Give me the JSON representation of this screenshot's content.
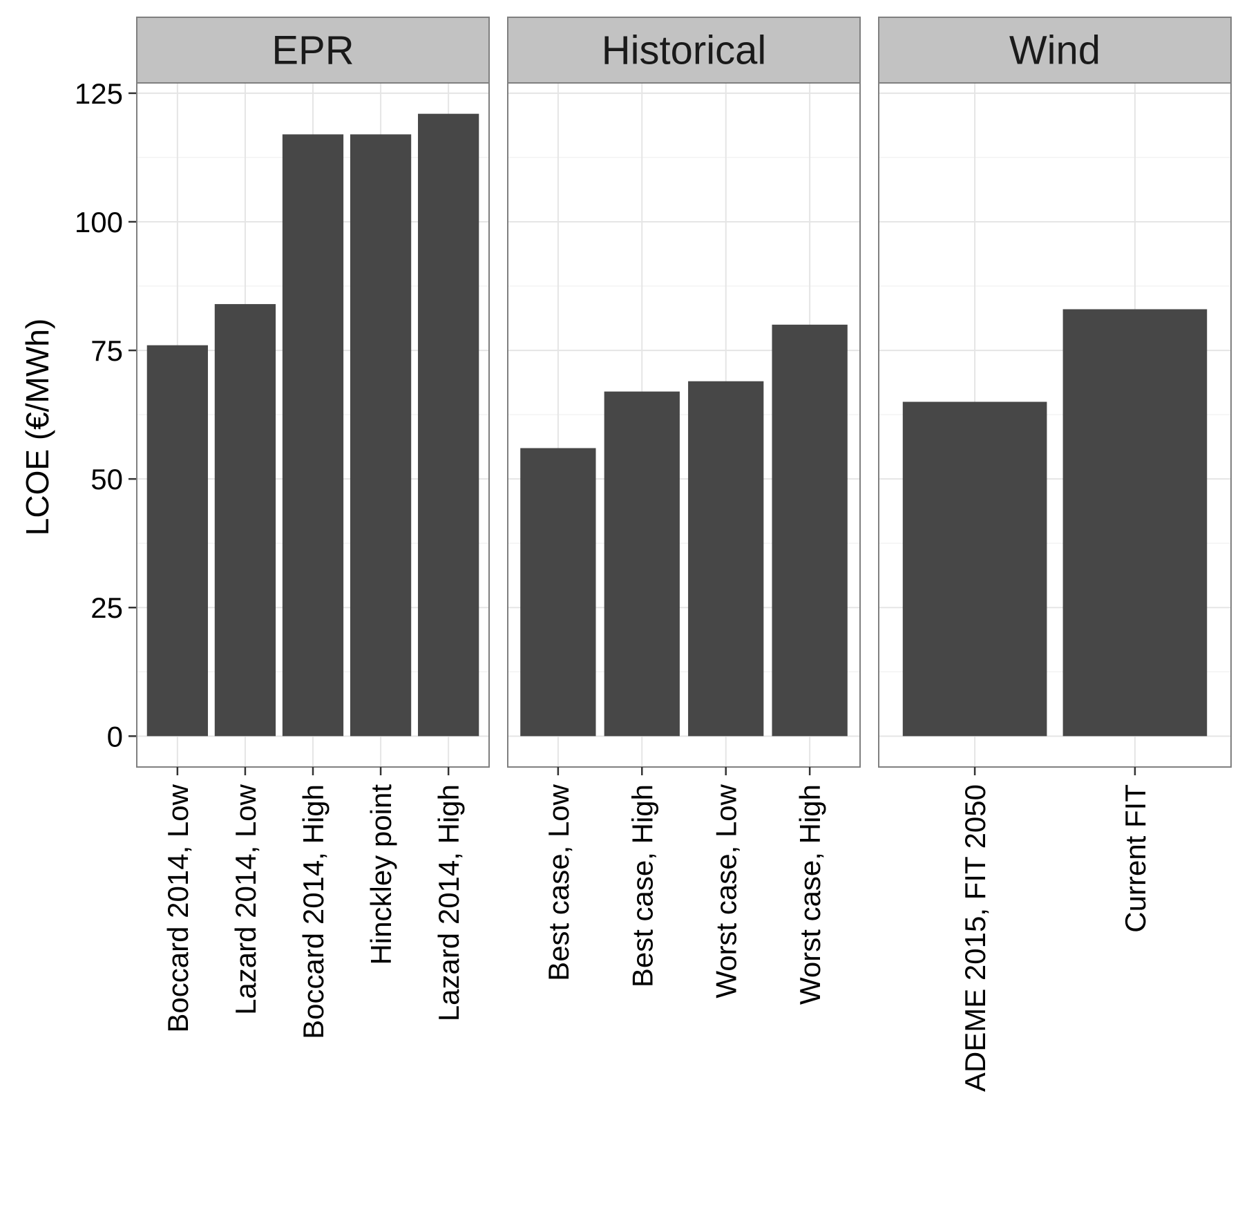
{
  "chart_data": {
    "type": "bar",
    "ylabel": "LCOE (€/MWh)",
    "xlabel": "",
    "ylim": [
      -6,
      127
    ],
    "yticks": [
      0,
      25,
      50,
      75,
      100,
      125
    ],
    "grid": true,
    "facets": [
      {
        "name": "EPR",
        "categories": [
          "Boccard 2014, Low",
          "Lazard 2014, Low",
          "Boccard 2014, High",
          "Hinckley point",
          "Lazard 2014, High"
        ],
        "values": [
          76,
          84,
          117,
          117,
          121
        ]
      },
      {
        "name": "Historical",
        "categories": [
          "Best case, Low",
          "Best case, High",
          "Worst case, Low",
          "Worst case, High"
        ],
        "values": [
          56,
          67,
          69,
          80
        ]
      },
      {
        "name": "Wind",
        "categories": [
          "ADEME 2015, FIT 2050",
          "Current FIT"
        ],
        "values": [
          65,
          83
        ]
      }
    ],
    "colors": {
      "bar": "#474747",
      "strip_fill": "#c2c2c2",
      "strip_border": "#7f7f7f",
      "panel_border": "#7f7f7f",
      "grid_major": "#e5e5e5",
      "grid_minor": "#f3f3f3"
    }
  }
}
